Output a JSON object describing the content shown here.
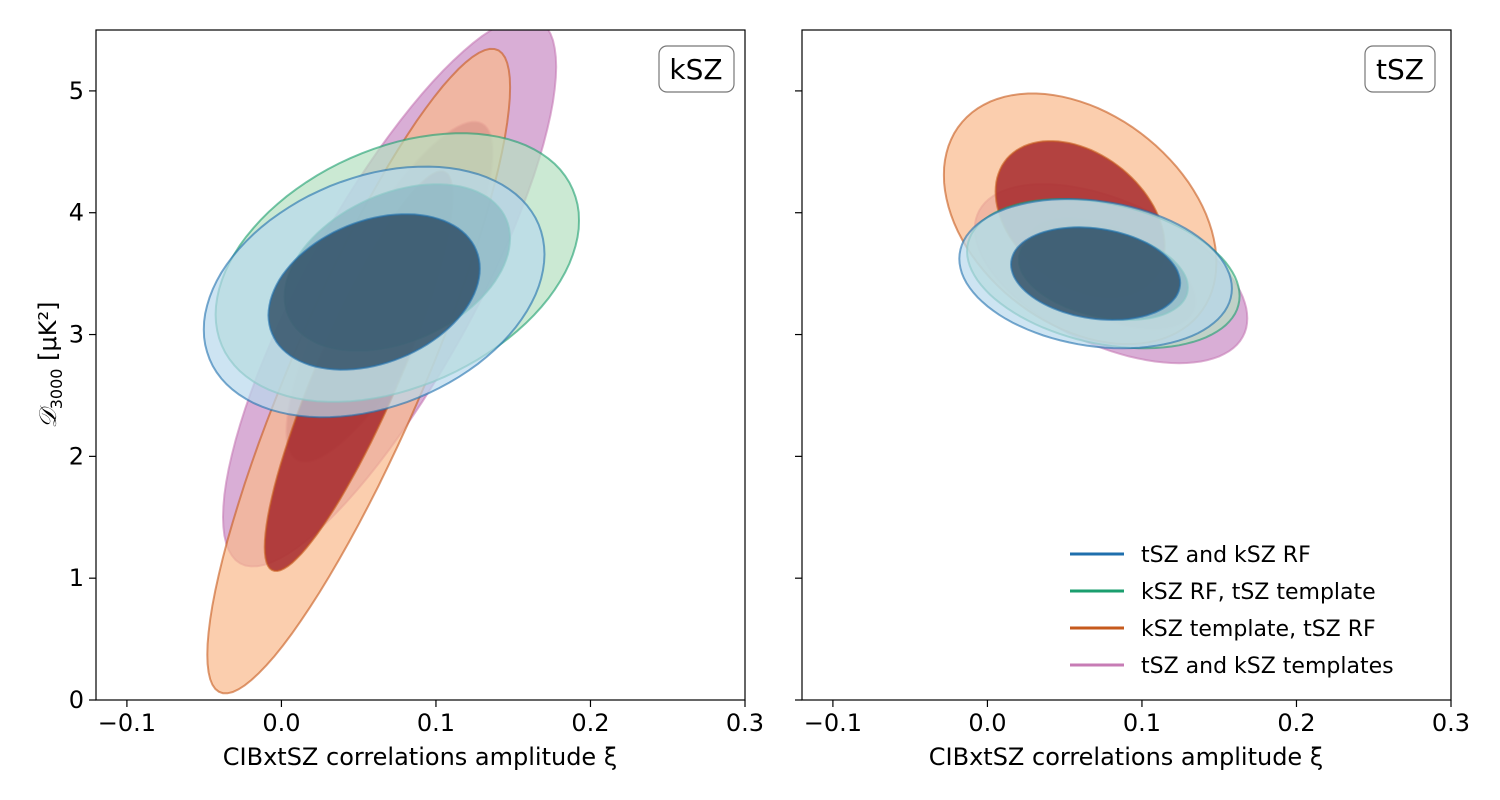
{
  "chart_data": [
    {
      "type": "contour",
      "panel_label": "kSZ",
      "xlabel": "CIBxtSZ correlations amplitude ξ",
      "ylabel": "D_3000 [μK²]",
      "ylabel_main": "𝒟",
      "ylabel_sub": "3000",
      "ylabel_units": " [μK²]",
      "xlim": [
        -0.12,
        0.3
      ],
      "ylim": [
        0,
        5.5
      ],
      "xticks": [
        -0.1,
        0.0,
        0.1,
        0.2,
        0.3
      ],
      "xtick_labels": [
        "−0.1",
        "0.0",
        "0.1",
        "0.2",
        "0.3"
      ],
      "yticks": [
        0,
        1,
        2,
        3,
        4,
        5
      ],
      "ytick_labels": [
        "0",
        "1",
        "2",
        "3",
        "4",
        "5"
      ],
      "contours": [
        {
          "series": "tSZ and kSZ templates",
          "center": [
            0.07,
            3.35
          ],
          "sigma": [
            0.044,
            0.92
          ],
          "corr": 0.82
        },
        {
          "series": "kSZ template,  tSZ RF",
          "center": [
            0.05,
            2.7
          ],
          "sigma": [
            0.04,
            1.08
          ],
          "corr": 0.88
        },
        {
          "series": "kSZ RF,  tSZ template",
          "center": [
            0.075,
            3.55
          ],
          "sigma": [
            0.048,
            0.45
          ],
          "corr": 0.35
        },
        {
          "series": "tSZ and kSZ RF",
          "center": [
            0.06,
            3.35
          ],
          "sigma": [
            0.045,
            0.42
          ],
          "corr": 0.3
        }
      ]
    },
    {
      "type": "contour",
      "panel_label": "tSZ",
      "xlabel": "CIBxtSZ correlations amplitude ξ",
      "xlim": [
        -0.12,
        0.3
      ],
      "ylim": [
        0,
        5.5
      ],
      "xticks": [
        -0.1,
        0.0,
        0.1,
        0.2,
        0.3
      ],
      "xtick_labels": [
        "−0.1",
        "0.0",
        "0.1",
        "0.2",
        "0.3"
      ],
      "yticks": [
        0,
        1,
        2,
        3,
        4,
        5
      ],
      "contours": [
        {
          "series": "tSZ and kSZ templates",
          "center": [
            0.08,
            3.5
          ],
          "sigma": [
            0.036,
            0.3
          ],
          "corr": -0.5
        },
        {
          "series": "kSZ template,  tSZ RF",
          "center": [
            0.06,
            3.95
          ],
          "sigma": [
            0.036,
            0.42
          ],
          "corr": -0.35
        },
        {
          "series": "kSZ RF,  tSZ template",
          "center": [
            0.075,
            3.5
          ],
          "sigma": [
            0.036,
            0.25
          ],
          "corr": -0.3
        },
        {
          "series": "tSZ and kSZ RF",
          "center": [
            0.07,
            3.5
          ],
          "sigma": [
            0.036,
            0.25
          ],
          "corr": -0.2
        }
      ],
      "legend": {
        "position": "lower-right",
        "entries": [
          "tSZ and kSZ RF",
          "kSZ RF,  tSZ template",
          "kSZ template,  tSZ RF",
          "tSZ and kSZ templates"
        ]
      }
    }
  ],
  "series_styles": {
    "tSZ and kSZ RF": {
      "line": "#1f6fad",
      "outer": "#b8d8ec",
      "inner": "#2c4a62"
    },
    "kSZ RF,  tSZ template": {
      "line": "#1a9e6e",
      "outer": "#b5dfc0",
      "inner": "#2f6f6a"
    },
    "kSZ template,  tSZ RF": {
      "line": "#c65a1c",
      "outer": "#f9b98c",
      "inner": "#a11f24"
    },
    "tSZ and kSZ templates": {
      "line": "#c77cb5",
      "outer": "#c98bc4",
      "inner": "#9c4f8f"
    }
  }
}
